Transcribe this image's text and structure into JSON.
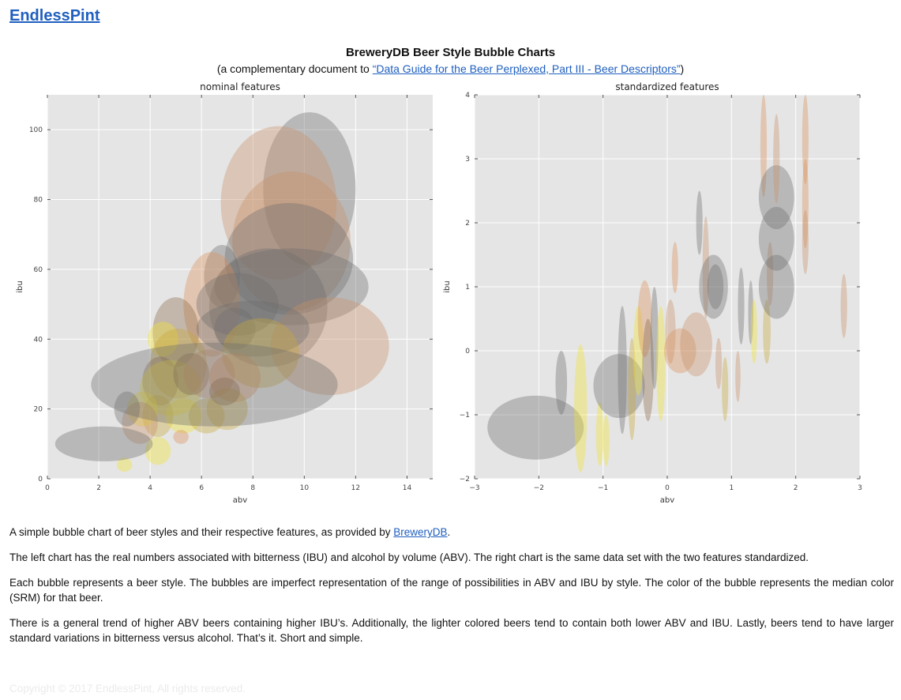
{
  "brand": "EndlessPint",
  "title": "BreweryDB Beer Style Bubble Charts",
  "subtitle_prefix": "(a complementary document to ",
  "subtitle_link": "“Data Guide for the Beer Perplexed, Part III - Beer Descriptors”",
  "subtitle_suffix": ")",
  "para1_prefix": "A simple bubble chart of beer styles and their respective features, as provided by ",
  "para1_link": "BreweryDB",
  "para1_suffix": ".",
  "para2": "The left chart has the real numbers associated with bitterness (IBU) and alcohol by volume (ABV). The right chart is the same data set with the two features standardized.",
  "para3": "Each bubble represents a beer style. The bubbles are imperfect representation of the range of possibilities in ABV and IBU by style. The color of the bubble represents the median color (SRM) for that beer.",
  "para4": "There is a general trend of higher ABV beers containing higher IBU’s. Additionally, the lighter colored beers tend to contain both lower ABV and IBU. Lastly, beers tend to have larger standard variations in bitterness versus alcohol. That’s it. Short and simple.",
  "copyright": "Copyright © 2017 EndlessPint, All rights reserved.",
  "colors": {
    "pale": "#f2e233",
    "gold": "#c9a93a",
    "amber": "#d9915a",
    "copper": "#c8906a",
    "brown": "#8b6a4a",
    "dark": "#6e6e6e",
    "plot_bg": "#e5e5e5",
    "link": "#1f5fbf"
  },
  "chart_data": [
    {
      "type": "scatter",
      "subtype": "bubble",
      "title": "nominal features",
      "xlabel": "abv",
      "ylabel": "ibu",
      "xlim": [
        0,
        15
      ],
      "ylim": [
        0,
        110
      ],
      "xticks": [
        "0",
        "2",
        "4",
        "6",
        "8",
        "10",
        "12",
        "14"
      ],
      "yticks": [
        "0",
        "20",
        "40",
        "60",
        "80",
        "100"
      ],
      "grid": true,
      "bubbles": [
        {
          "x": 10.2,
          "y": 83,
          "w": 3.6,
          "h": 44,
          "c": "dark"
        },
        {
          "x": 9,
          "y": 79,
          "w": 4.5,
          "h": 44,
          "c": "copper"
        },
        {
          "x": 9.5,
          "y": 68,
          "w": 4.6,
          "h": 40,
          "c": "copper"
        },
        {
          "x": 9.4,
          "y": 63,
          "w": 5.0,
          "h": 32,
          "c": "dark"
        },
        {
          "x": 9.5,
          "y": 55,
          "w": 6.0,
          "h": 22,
          "c": "dark"
        },
        {
          "x": 8.6,
          "y": 49,
          "w": 4.6,
          "h": 34,
          "c": "dark"
        },
        {
          "x": 11,
          "y": 38,
          "w": 4.6,
          "h": 28,
          "c": "copper"
        },
        {
          "x": 6.8,
          "y": 58,
          "w": 1.4,
          "h": 18,
          "c": "dark"
        },
        {
          "x": 6.4,
          "y": 50,
          "w": 2.2,
          "h": 30,
          "c": "amber"
        },
        {
          "x": 7.4,
          "y": 50,
          "w": 3.2,
          "h": 18,
          "c": "dark"
        },
        {
          "x": 8.0,
          "y": 43,
          "w": 4.4,
          "h": 16,
          "c": "dark"
        },
        {
          "x": 7.3,
          "y": 43,
          "w": 1.6,
          "h": 12,
          "c": "dark"
        },
        {
          "x": 8.3,
          "y": 36,
          "w": 3.0,
          "h": 20,
          "c": "gold"
        },
        {
          "x": 5.0,
          "y": 42,
          "w": 1.8,
          "h": 20,
          "c": "brown"
        },
        {
          "x": 4.5,
          "y": 40,
          "w": 1.2,
          "h": 10,
          "c": "pale"
        },
        {
          "x": 5.1,
          "y": 33,
          "w": 2.2,
          "h": 20,
          "c": "gold"
        },
        {
          "x": 4.4,
          "y": 28,
          "w": 1.4,
          "h": 14,
          "c": "brown"
        },
        {
          "x": 4.8,
          "y": 26,
          "w": 2.4,
          "h": 16,
          "c": "pale"
        },
        {
          "x": 5.6,
          "y": 30,
          "w": 1.4,
          "h": 12,
          "c": "brown"
        },
        {
          "x": 6.3,
          "y": 30,
          "w": 2.0,
          "h": 14,
          "c": "copper"
        },
        {
          "x": 7.3,
          "y": 29,
          "w": 2.0,
          "h": 14,
          "c": "amber"
        },
        {
          "x": 4.3,
          "y": 18,
          "w": 1.2,
          "h": 12,
          "c": "gold"
        },
        {
          "x": 3.7,
          "y": 20,
          "w": 1.2,
          "h": 10,
          "c": "pale"
        },
        {
          "x": 3.6,
          "y": 16,
          "w": 1.4,
          "h": 12,
          "c": "copper"
        },
        {
          "x": 3.1,
          "y": 20,
          "w": 1.0,
          "h": 10,
          "c": "dark"
        },
        {
          "x": 5.3,
          "y": 18,
          "w": 1.4,
          "h": 10,
          "c": "pale"
        },
        {
          "x": 5.2,
          "y": 12,
          "w": 0.6,
          "h": 4,
          "c": "amber"
        },
        {
          "x": 4.3,
          "y": 8,
          "w": 1.0,
          "h": 8,
          "c": "pale"
        },
        {
          "x": 3.0,
          "y": 4,
          "w": 0.6,
          "h": 4,
          "c": "pale"
        },
        {
          "x": 6.2,
          "y": 18,
          "w": 1.4,
          "h": 10,
          "c": "gold"
        },
        {
          "x": 7.0,
          "y": 20,
          "w": 1.6,
          "h": 12,
          "c": "gold"
        },
        {
          "x": 6.9,
          "y": 25,
          "w": 1.2,
          "h": 8,
          "c": "brown"
        },
        {
          "x": 2.2,
          "y": 10,
          "w": 3.8,
          "h": 10,
          "c": "dark"
        },
        {
          "x": 6.5,
          "y": 27,
          "w": 9.6,
          "h": 24,
          "c": "dark"
        }
      ]
    },
    {
      "type": "scatter",
      "subtype": "bubble",
      "title": "standardized features",
      "xlabel": "abv",
      "ylabel": "ibu",
      "xlim": [
        -3,
        3
      ],
      "ylim": [
        -2,
        4
      ],
      "xticks": [
        "−3",
        "−2",
        "−1",
        "0",
        "1",
        "2",
        "3"
      ],
      "yticks": [
        "−2",
        "−1",
        "0",
        "1",
        "2",
        "3",
        "4"
      ],
      "grid": true,
      "bubbles": [
        {
          "x": -2.05,
          "y": -1.2,
          "w": 1.5,
          "h": 1.0,
          "c": "dark"
        },
        {
          "x": -1.65,
          "y": -0.5,
          "w": 0.18,
          "h": 1.0,
          "c": "dark"
        },
        {
          "x": -1.35,
          "y": -0.9,
          "w": 0.2,
          "h": 2.0,
          "c": "pale"
        },
        {
          "x": -1.05,
          "y": -1.3,
          "w": 0.12,
          "h": 1.0,
          "c": "pale"
        },
        {
          "x": -0.95,
          "y": -1.4,
          "w": 0.1,
          "h": 0.8,
          "c": "pale"
        },
        {
          "x": -0.75,
          "y": -0.55,
          "w": 0.8,
          "h": 1.0,
          "c": "dark"
        },
        {
          "x": -0.7,
          "y": -0.3,
          "w": 0.14,
          "h": 2.0,
          "c": "dark"
        },
        {
          "x": -0.55,
          "y": -0.6,
          "w": 0.12,
          "h": 1.6,
          "c": "gold"
        },
        {
          "x": -0.45,
          "y": 0.0,
          "w": 0.16,
          "h": 1.4,
          "c": "pale"
        },
        {
          "x": -0.35,
          "y": 0.5,
          "w": 0.22,
          "h": 1.2,
          "c": "amber"
        },
        {
          "x": -0.3,
          "y": -0.3,
          "w": 0.18,
          "h": 1.6,
          "c": "brown"
        },
        {
          "x": -0.2,
          "y": 0.2,
          "w": 0.12,
          "h": 1.6,
          "c": "dark"
        },
        {
          "x": -0.1,
          "y": -0.2,
          "w": 0.14,
          "h": 1.8,
          "c": "pale"
        },
        {
          "x": 0.05,
          "y": 0.3,
          "w": 0.16,
          "h": 1.0,
          "c": "copper"
        },
        {
          "x": 0.2,
          "y": 0.0,
          "w": 0.5,
          "h": 0.7,
          "c": "amber"
        },
        {
          "x": 0.45,
          "y": 0.1,
          "w": 0.5,
          "h": 1.0,
          "c": "copper"
        },
        {
          "x": 0.12,
          "y": 1.3,
          "w": 0.1,
          "h": 0.8,
          "c": "amber"
        },
        {
          "x": 0.5,
          "y": 2.0,
          "w": 0.1,
          "h": 1.0,
          "c": "dark"
        },
        {
          "x": 0.6,
          "y": 1.3,
          "w": 0.1,
          "h": 1.6,
          "c": "copper"
        },
        {
          "x": 0.72,
          "y": 1.0,
          "w": 0.45,
          "h": 1.0,
          "c": "dark"
        },
        {
          "x": 0.75,
          "y": 1.0,
          "w": 0.25,
          "h": 0.7,
          "c": "dark"
        },
        {
          "x": 0.8,
          "y": -0.2,
          "w": 0.1,
          "h": 0.8,
          "c": "copper"
        },
        {
          "x": 0.9,
          "y": -0.6,
          "w": 0.1,
          "h": 1.0,
          "c": "gold"
        },
        {
          "x": 1.1,
          "y": -0.4,
          "w": 0.08,
          "h": 0.8,
          "c": "copper"
        },
        {
          "x": 1.15,
          "y": 0.7,
          "w": 0.1,
          "h": 1.2,
          "c": "dark"
        },
        {
          "x": 1.3,
          "y": 0.6,
          "w": 0.08,
          "h": 1.0,
          "c": "dark"
        },
        {
          "x": 1.35,
          "y": 0.3,
          "w": 0.1,
          "h": 1.0,
          "c": "pale"
        },
        {
          "x": 1.55,
          "y": 0.3,
          "w": 0.12,
          "h": 1.0,
          "c": "gold"
        },
        {
          "x": 1.6,
          "y": 1.2,
          "w": 0.1,
          "h": 1.0,
          "c": "copper"
        },
        {
          "x": 1.5,
          "y": 3.2,
          "w": 0.1,
          "h": 1.6,
          "c": "amber"
        },
        {
          "x": 1.7,
          "y": 2.4,
          "w": 0.55,
          "h": 1.0,
          "c": "dark"
        },
        {
          "x": 1.7,
          "y": 1.75,
          "w": 0.55,
          "h": 1.0,
          "c": "dark"
        },
        {
          "x": 1.7,
          "y": 1.0,
          "w": 0.55,
          "h": 1.0,
          "c": "dark"
        },
        {
          "x": 1.7,
          "y": 3.0,
          "w": 0.1,
          "h": 1.4,
          "c": "copper"
        },
        {
          "x": 2.15,
          "y": 3.3,
          "w": 0.1,
          "h": 1.4,
          "c": "amber"
        },
        {
          "x": 2.15,
          "y": 2.3,
          "w": 0.1,
          "h": 1.4,
          "c": "amber"
        },
        {
          "x": 2.15,
          "y": 1.7,
          "w": 0.1,
          "h": 1.0,
          "c": "copper"
        },
        {
          "x": 2.75,
          "y": 0.7,
          "w": 0.1,
          "h": 1.0,
          "c": "copper"
        }
      ]
    }
  ]
}
